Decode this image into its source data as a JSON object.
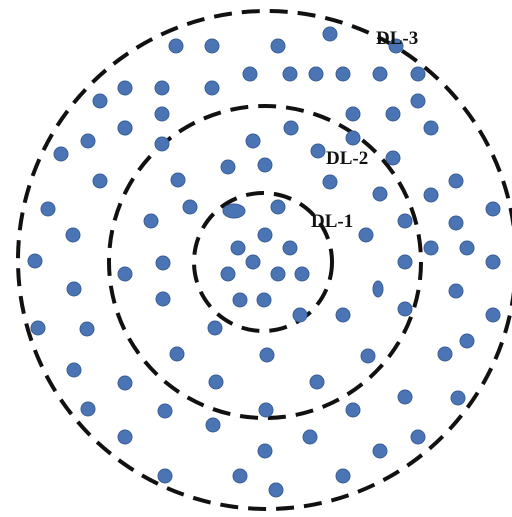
{
  "labels": {
    "dl3": "DL-3",
    "dl2": "DL-2",
    "dl1": "DL-1"
  },
  "colors": {
    "dots": "#4a74b4",
    "rings": "#111111",
    "background": "#ffffff"
  }
}
